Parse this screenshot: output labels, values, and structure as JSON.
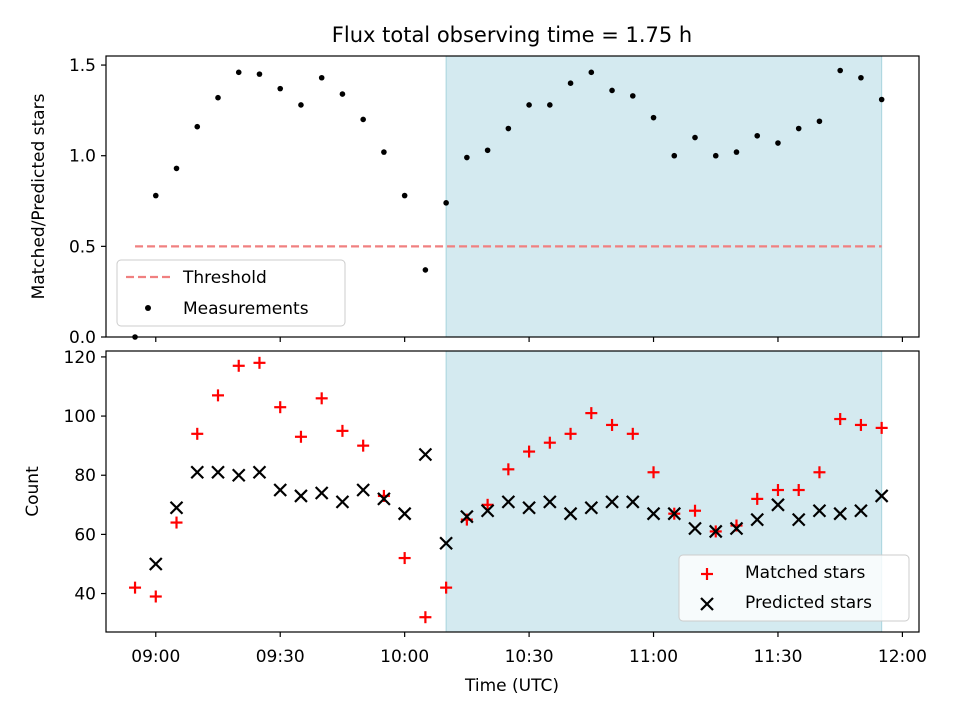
{
  "title": "Flux total observing time = 1.75 h",
  "shaded_color": "#d4eaf0",
  "chart_data": [
    {
      "type": "scatter",
      "panel": "top",
      "xlabel": "",
      "ylabel": "Matched/Predicted stars",
      "x_unit": "minutes after 00:00 UTC",
      "xlim": [
        528,
        724
      ],
      "ylim": [
        0,
        1.55
      ],
      "yticks": [
        0.0,
        0.5,
        1.0,
        1.5
      ],
      "ytick_labels": [
        "0.0",
        "0.5",
        "1.0",
        "1.5"
      ],
      "shaded_region": [
        610,
        715
      ],
      "legend": {
        "placement": "lower-left",
        "entries": [
          "Threshold",
          "Measurements"
        ]
      },
      "threshold": {
        "name": "Threshold",
        "value": 0.5,
        "x_range": [
          535,
          715
        ],
        "color": "#f08080",
        "style": "dashed"
      },
      "series": [
        {
          "name": "Measurements",
          "color": "#000000",
          "marker": "dot",
          "x": [
            535,
            540,
            545,
            550,
            555,
            560,
            565,
            570,
            575,
            580,
            585,
            590,
            595,
            600,
            605,
            610,
            615,
            620,
            625,
            630,
            635,
            640,
            645,
            650,
            655,
            660,
            665,
            670,
            675,
            680,
            685,
            690,
            695,
            700,
            705,
            710,
            715
          ],
          "y": [
            0.0,
            0.78,
            0.93,
            1.16,
            1.32,
            1.46,
            1.45,
            1.37,
            1.28,
            1.43,
            1.34,
            1.2,
            1.02,
            0.78,
            0.37,
            0.74,
            0.99,
            1.03,
            1.15,
            1.28,
            1.28,
            1.4,
            1.46,
            1.36,
            1.33,
            1.21,
            1.0,
            1.1,
            1.0,
            1.02,
            1.11,
            1.07,
            1.15,
            1.19,
            1.47,
            1.43,
            1.31
          ]
        }
      ]
    },
    {
      "type": "scatter",
      "panel": "bottom",
      "xlabel": "Time (UTC)",
      "ylabel": "Count",
      "x_unit": "minutes after 00:00 UTC",
      "xlim": [
        528,
        724
      ],
      "ylim": [
        27,
        122
      ],
      "yticks": [
        40,
        60,
        80,
        100,
        120
      ],
      "ytick_labels": [
        "40",
        "60",
        "80",
        "100",
        "120"
      ],
      "xticks": [
        540,
        570,
        600,
        630,
        660,
        690,
        720
      ],
      "xtick_labels": [
        "09:00",
        "09:30",
        "10:00",
        "10:30",
        "11:00",
        "11:30",
        "12:00"
      ],
      "shaded_region": [
        610,
        715
      ],
      "legend": {
        "placement": "lower-right",
        "entries": [
          "Matched stars",
          "Predicted stars"
        ]
      },
      "series": [
        {
          "name": "Matched stars",
          "color": "#ff0000",
          "marker": "plus",
          "x": [
            535,
            540,
            545,
            550,
            555,
            560,
            565,
            570,
            575,
            580,
            585,
            590,
            595,
            600,
            605,
            610,
            615,
            620,
            625,
            630,
            635,
            640,
            645,
            650,
            655,
            660,
            665,
            670,
            675,
            680,
            685,
            690,
            695,
            700,
            705,
            710,
            715
          ],
          "y": [
            42,
            39,
            64,
            94,
            107,
            117,
            118,
            103,
            93,
            106,
            95,
            90,
            73,
            52,
            32,
            42,
            65,
            70,
            82,
            88,
            91,
            94,
            101,
            97,
            94,
            81,
            67,
            68,
            61,
            63,
            72,
            75,
            75,
            81,
            99,
            97,
            96
          ]
        },
        {
          "name": "Predicted stars",
          "color": "#000000",
          "marker": "x",
          "x": [
            540,
            545,
            550,
            555,
            560,
            565,
            570,
            575,
            580,
            585,
            590,
            595,
            600,
            605,
            610,
            615,
            620,
            625,
            630,
            635,
            640,
            645,
            650,
            655,
            660,
            665,
            670,
            675,
            680,
            685,
            690,
            695,
            700,
            705,
            710,
            715
          ],
          "y": [
            50,
            69,
            81,
            81,
            80,
            81,
            75,
            73,
            74,
            71,
            75,
            72,
            67,
            87,
            57,
            66,
            68,
            71,
            69,
            71,
            67,
            69,
            71,
            71,
            67,
            67,
            62,
            61,
            62,
            65,
            70,
            65,
            68,
            67,
            68,
            73
          ]
        }
      ]
    }
  ]
}
